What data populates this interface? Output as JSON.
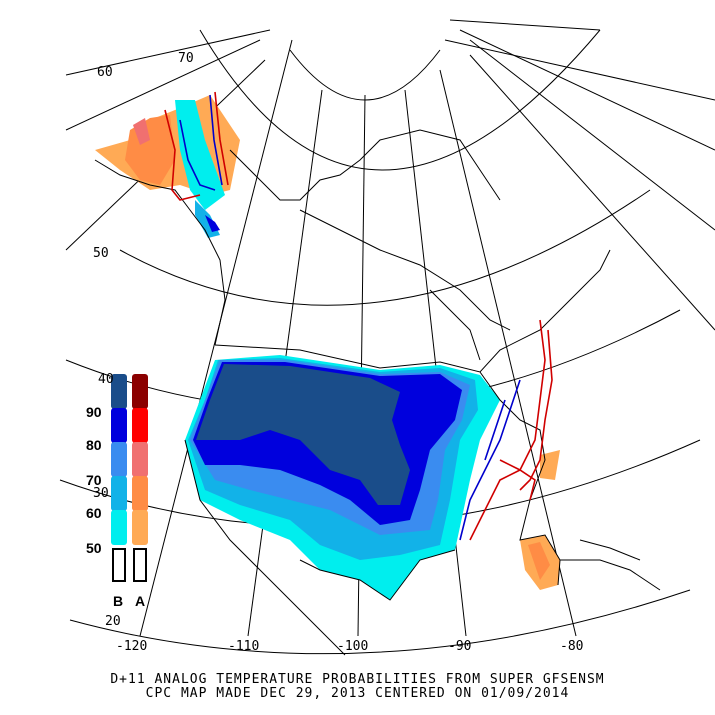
{
  "title_line1": "D+11 ANALOG TEMPERATURE PROBABILITIES FROM SUPER GFSENSM",
  "title_line2": "CPC MAP MADE DEC 29, 2013 CENTERED ON 01/09/2014",
  "longitude_labels": [
    "-120",
    "-110",
    "-100",
    "-90",
    "-80"
  ],
  "latitude_labels": [
    "70",
    "60",
    "50",
    "40",
    "30",
    "20"
  ],
  "legend": {
    "levels": [
      "90",
      "80",
      "70",
      "60",
      "50"
    ],
    "below_label": "B",
    "above_label": "A",
    "below_colors": [
      "#1a4d8a",
      "#0000dd",
      "#3a8cf0",
      "#12b2e8",
      "#00eeee"
    ],
    "above_colors": [
      "#8b0000",
      "#ff0000",
      "#f07070",
      "#ff8c45",
      "#ffaa55"
    ]
  },
  "colors": {
    "below_normal_highest": "#1a4d8a",
    "above_normal": "#ff8c45",
    "line_red": "#d00000",
    "line_blue": "#0000cc"
  }
}
